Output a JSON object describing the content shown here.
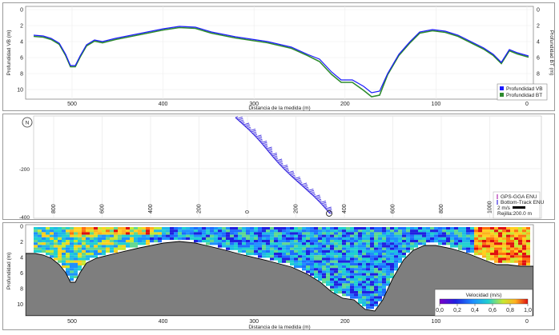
{
  "top_panel": {
    "y_left_label": "Profundidad VB (m)",
    "y_right_label": "Profundidad BT (m)",
    "x_label": "Distancia de la medida (m)",
    "y_ticks": [
      "0",
      "2",
      "4",
      "6",
      "8",
      "10"
    ],
    "x_ticks": [
      "500",
      "400",
      "300",
      "200",
      "100",
      "0"
    ],
    "legend": [
      {
        "label": "Profundidad VB",
        "color": "#1a1aff"
      },
      {
        "label": "Profundidad BT",
        "color": "#2e8b2e"
      }
    ]
  },
  "middle_panel": {
    "north_label": "N",
    "y_tick": "-200",
    "y_bottom_tick": "-400",
    "x_ticks": [
      "800",
      "600",
      "400",
      "200",
      "0",
      "200",
      "400",
      "600",
      "800",
      "1000"
    ],
    "legend": {
      "gps": "GPS-GGA ENU",
      "bottom_track": "Bottom-Track ENU",
      "scale": "2 m/s",
      "grid": "Rejilla:200.0 m"
    },
    "track_color": "#3a2adf"
  },
  "bottom_panel": {
    "y_label": "Profundidad (m)",
    "x_label": "Distancia de la medida (m)",
    "y_ticks": [
      "0",
      "2",
      "4",
      "6",
      "8",
      "10"
    ],
    "x_ticks": [
      "500",
      "400",
      "300",
      "200",
      "100",
      "0"
    ],
    "colorbar": {
      "title": "Velocidad (m/s)",
      "ticks": [
        "0,0",
        "0,2",
        "0,4",
        "0,6",
        "0,8",
        "1,0"
      ]
    }
  }
}
